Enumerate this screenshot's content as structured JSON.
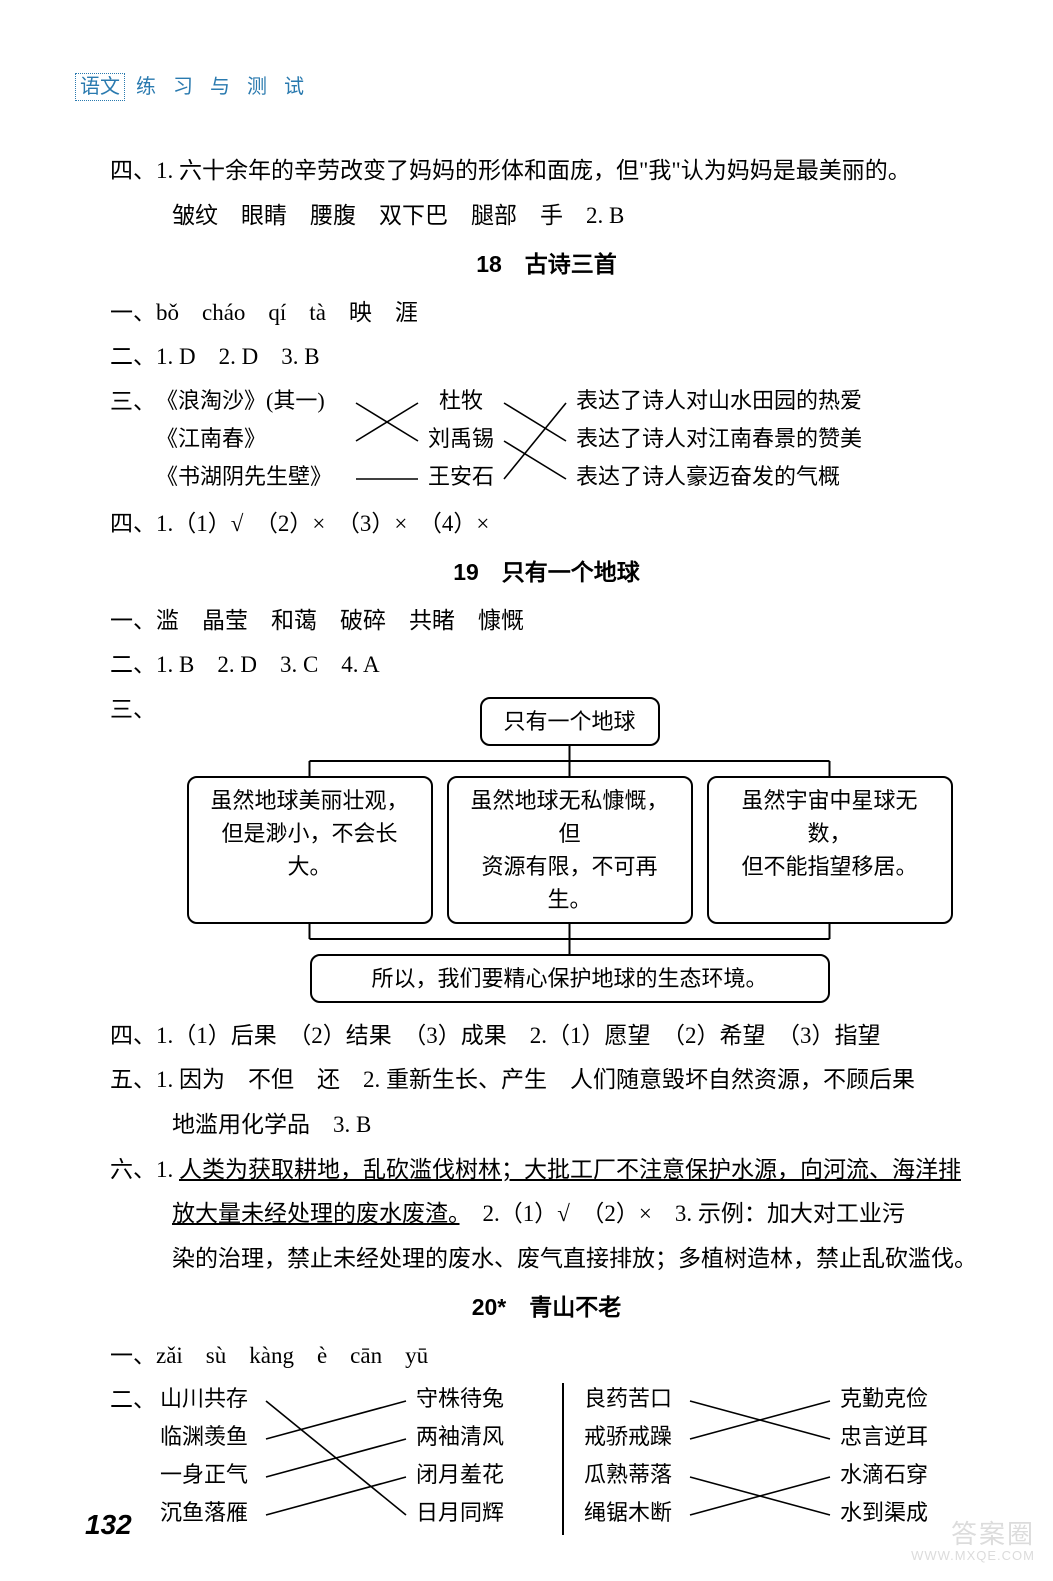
{
  "header": {
    "subject": "语文",
    "title": "练 习 与 测 试"
  },
  "page_number": "132",
  "watermark": {
    "line1": "答案圈",
    "line2": "WWW.MXQE.COM"
  },
  "s4": {
    "q1_line1": "四、1. 六十余年的辛劳改变了妈妈的形体和面庞，但\"我\"认为妈妈是最美丽的。",
    "q1_line2": "皱纹　眼睛　腰腹　双下巴　腿部　手　2. B"
  },
  "title18": "18　古诗三首",
  "s18": {
    "l1": "一、bǒ　cháo　qí　tà　映　涯",
    "l2": "二、1. D　2. D　3. B",
    "l3_label": "三、",
    "match": {
      "left": [
        "《浪淘沙》(其一)",
        "《江南春》",
        "《书湖阴先生壁》"
      ],
      "mid": [
        "杜牧",
        "刘禹锡",
        "王安石"
      ],
      "right": [
        "表达了诗人对山水田园的热爱",
        "表达了诗人对江南春景的赞美",
        "表达了诗人豪迈奋发的气概"
      ],
      "left_to_mid": [
        [
          0,
          1
        ],
        [
          1,
          0
        ],
        [
          2,
          2
        ]
      ],
      "mid_to_right": [
        [
          0,
          1
        ],
        [
          1,
          2
        ],
        [
          2,
          0
        ]
      ],
      "line_color": "#000000",
      "stroke_width": 1.6,
      "font_size": 22
    },
    "l4": "四、1.（1）√　（2）×　（3）×　（4）×"
  },
  "title19": "19　只有一个地球",
  "s19": {
    "l1": "一、滥　晶莹　和蔼　破碎　共睹　慷慨",
    "l2": "二、1. B　2. D　3. C　4. A",
    "l3_label": "三、",
    "tree": {
      "top": "只有一个地球",
      "mids": [
        "虽然地球美丽壮观，\n但是渺小，不会长大。",
        "虽然地球无私慷慨，但\n资源有限，不可再生。",
        "虽然宇宙中星球无数，\n但不能指望移居。"
      ],
      "bottom": "所以，我们要精心保护地球的生态环境。",
      "border_color": "#000000",
      "border_width": 2,
      "border_radius": 10
    },
    "l4": "四、1.（1）后果　（2）结果　（3）成果　2.（1）愿望　（2）希望　（3）指望",
    "l5_1": "五、1. 因为　不但　还　2. 重新生长、产生　人们随意毁坏自然资源，不顾后果",
    "l5_2": "地滥用化学品　3. B",
    "l6_1a": "六、1. ",
    "l6_1u": "人类为获取耕地，乱砍滥伐树林；大批工厂不注意保护水源，向河流、海洋排",
    "l6_2u": "放大量未经处理的废水废渣。",
    "l6_2b": "　2.（1）√　（2）×　3. 示例：加大对工业污",
    "l6_3": "染的治理，禁止未经处理的废水、废气直接排放；多植树造林，禁止乱砍滥伐。"
  },
  "title20": "20*　青山不老",
  "s20": {
    "l1": "一、zǎi　sù　kàng　è　cān　yū",
    "l2_label": "二、",
    "match_left": {
      "left": [
        "山川共存",
        "临渊羡鱼",
        "一身正气",
        "沉鱼落雁"
      ],
      "right": [
        "守株待兔",
        "两袖清风",
        "闭月羞花",
        "日月同辉"
      ],
      "pairs": [
        [
          0,
          3
        ],
        [
          1,
          0
        ],
        [
          2,
          1
        ],
        [
          3,
          2
        ]
      ],
      "line_color": "#000000",
      "stroke_width": 1.6,
      "font_size": 22
    },
    "match_right": {
      "left": [
        "良药苦口",
        "戒骄戒躁",
        "瓜熟蒂落",
        "绳锯木断"
      ],
      "right": [
        "克勤克俭",
        "忠言逆耳",
        "水滴石穿",
        "水到渠成"
      ],
      "pairs": [
        [
          0,
          1
        ],
        [
          1,
          0
        ],
        [
          2,
          3
        ],
        [
          3,
          2
        ]
      ],
      "line_color": "#000000",
      "stroke_width": 1.6,
      "font_size": 22
    }
  }
}
